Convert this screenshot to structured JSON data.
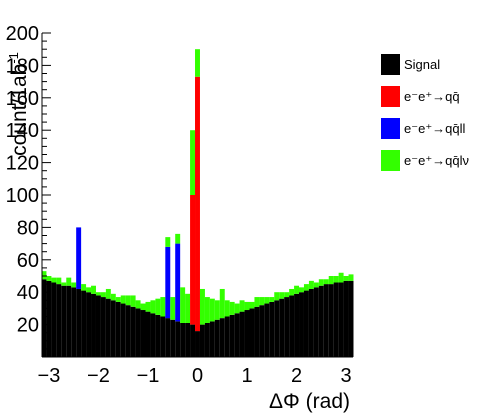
{
  "chart_data": {
    "type": "bar",
    "stacked": true,
    "xlabel": "ΔΦ (rad)",
    "ylabel": "count/1ab",
    "ylabel_sup": "-1",
    "xlim": [
      -3.14,
      3.14
    ],
    "ylim": [
      0,
      200
    ],
    "xticks": [
      -3,
      -2,
      -1,
      0,
      1,
      2,
      3
    ],
    "xtick_labels": [
      "−3",
      "−2",
      "−1",
      "0",
      "1",
      "2",
      "3"
    ],
    "yticks": [
      20,
      40,
      60,
      80,
      100,
      120,
      140,
      160,
      180,
      200
    ],
    "grid": false,
    "legend_position": "right",
    "bin_centers": [
      -3.1,
      -3.0,
      -2.9,
      -2.8,
      -2.7,
      -2.6,
      -2.5,
      -2.4,
      -2.3,
      -2.2,
      -2.1,
      -2.0,
      -1.9,
      -1.8,
      -1.7,
      -1.6,
      -1.5,
      -1.4,
      -1.3,
      -1.2,
      -1.1,
      -1.0,
      -0.9,
      -0.8,
      -0.7,
      -0.6,
      -0.5,
      -0.4,
      -0.3,
      -0.2,
      -0.1,
      0.0,
      0.1,
      0.2,
      0.3,
      0.4,
      0.5,
      0.6,
      0.7,
      0.8,
      0.9,
      1.0,
      1.1,
      1.2,
      1.3,
      1.4,
      1.5,
      1.6,
      1.7,
      1.8,
      1.9,
      2.0,
      2.1,
      2.2,
      2.3,
      2.4,
      2.5,
      2.6,
      2.7,
      2.8,
      2.9,
      3.0,
      3.1
    ],
    "series": [
      {
        "name": "Signal",
        "color": "#000000",
        "values": [
          48,
          47,
          46,
          45,
          44,
          44,
          43,
          42,
          41,
          40,
          39,
          38,
          37,
          36,
          35,
          34,
          33,
          32,
          31,
          30,
          29,
          28,
          27,
          26,
          25,
          24,
          23,
          22,
          21,
          21,
          20,
          16,
          20,
          21,
          22,
          23,
          24,
          25,
          26,
          27,
          28,
          29,
          30,
          31,
          32,
          33,
          34,
          35,
          36,
          37,
          38,
          39,
          40,
          41,
          42,
          43,
          44,
          45,
          45,
          46,
          46,
          47,
          47
        ]
      },
      {
        "name": "e⁻e⁺→qq̄",
        "color": "#ff0000",
        "values": [
          0,
          0,
          0,
          0,
          0,
          0,
          0,
          0,
          0,
          0,
          0,
          0,
          0,
          0,
          0,
          0,
          0,
          0,
          0,
          0,
          0,
          0,
          0,
          0,
          0,
          0,
          0,
          0,
          0,
          0,
          80,
          157,
          0,
          0,
          0,
          0,
          0,
          0,
          0,
          0,
          0,
          0,
          0,
          0,
          0,
          0,
          0,
          0,
          0,
          0,
          0,
          0,
          0,
          0,
          0,
          0,
          0,
          0,
          0,
          0,
          0,
          0,
          0
        ]
      },
      {
        "name": "e⁻e⁺→qq̄ll",
        "color": "#0000ff",
        "values": [
          0,
          0,
          0,
          0,
          0,
          0,
          0,
          38,
          0,
          0,
          0,
          0,
          0,
          0,
          0,
          0,
          0,
          0,
          0,
          0,
          0,
          0,
          0,
          0,
          0,
          44,
          0,
          48,
          0,
          0,
          0,
          0,
          0,
          0,
          0,
          0,
          0,
          0,
          0,
          0,
          0,
          0,
          0,
          0,
          0,
          0,
          0,
          0,
          0,
          0,
          0,
          0,
          0,
          0,
          0,
          0,
          0,
          0,
          0,
          0,
          0,
          0,
          0
        ]
      },
      {
        "name": "e⁻e⁺→qq̄lν",
        "color": "#33ff00",
        "values": [
          5,
          3,
          3,
          4,
          2,
          5,
          3,
          0,
          4,
          3,
          5,
          2,
          3,
          6,
          4,
          3,
          5,
          6,
          7,
          5,
          4,
          6,
          8,
          10,
          12,
          6,
          14,
          6,
          22,
          18,
          40,
          17,
          22,
          16,
          14,
          12,
          18,
          10,
          8,
          6,
          7,
          5,
          4,
          6,
          5,
          4,
          3,
          5,
          4,
          3,
          4,
          5,
          3,
          4,
          5,
          3,
          4,
          3,
          5,
          4,
          6,
          3,
          4
        ]
      }
    ]
  }
}
